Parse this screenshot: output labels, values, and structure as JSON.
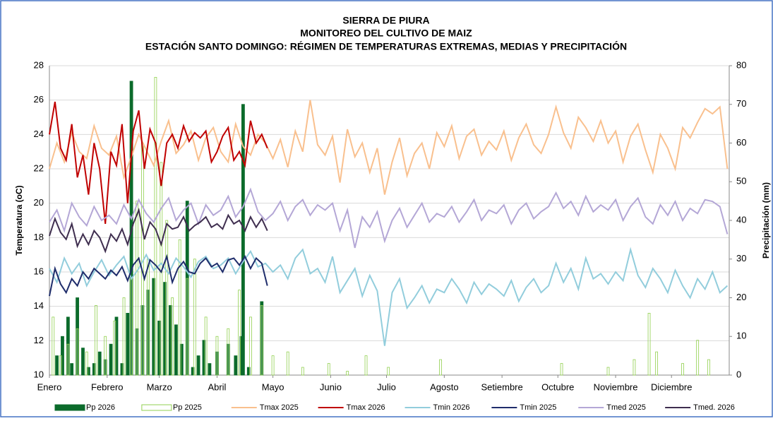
{
  "chart_data": {
    "type": "combo",
    "title": [
      "SIERRA DE PIURA",
      "MONITOREO DEL CULTIVO DE MAIZ",
      "ESTACIÓN SANTO DOMINGO: RÉGIMEN DE TEMPERATURAS EXTREMAS, MEDIAS Y PRECIPITACIÓN"
    ],
    "y_label": "Temperatura (oC)",
    "y2_label": "Precipitación (mm)",
    "xlim": [
      0,
      365
    ],
    "xticks": [
      {
        "value": 0,
        "label": "Enero"
      },
      {
        "value": 31,
        "label": "Febrero"
      },
      {
        "value": 59,
        "label": "Marzo"
      },
      {
        "value": 90,
        "label": "Abril"
      },
      {
        "value": 120,
        "label": "Mayo"
      },
      {
        "value": 151,
        "label": "Junio"
      },
      {
        "value": 181,
        "label": "Julio"
      },
      {
        "value": 212,
        "label": "Agosto"
      },
      {
        "value": 243,
        "label": "Setiembre"
      },
      {
        "value": 273,
        "label": "Octubre"
      },
      {
        "value": 304,
        "label": "Noviembre"
      },
      {
        "value": 334,
        "label": "Diciembre"
      }
    ],
    "ylim": [
      10,
      28
    ],
    "yticks": [
      10,
      12,
      14,
      16,
      18,
      20,
      22,
      24,
      26,
      28
    ],
    "y2lim": [
      0,
      80
    ],
    "y2ticks": [
      0,
      10,
      20,
      30,
      40,
      50,
      60,
      70,
      80
    ],
    "grid": true,
    "legend": "bottom",
    "series": [
      {
        "name": "Pp 2026",
        "type": "bar",
        "axis": "y2",
        "color": "#0b6b2b",
        "filled": true,
        "x": [
          4,
          7,
          10,
          12,
          15,
          18,
          21,
          24,
          27,
          30,
          33,
          36,
          39,
          42,
          44,
          47,
          50,
          53,
          56,
          59,
          62,
          65,
          68,
          71,
          74,
          77,
          80,
          83,
          86,
          90,
          96,
          100,
          103,
          104,
          107,
          114
        ],
        "values": [
          5,
          10,
          15,
          3,
          20,
          7,
          2,
          3,
          6,
          4,
          8,
          15,
          3,
          16,
          76,
          12,
          18,
          22,
          25,
          14,
          24,
          18,
          13,
          8,
          45,
          2,
          5,
          9,
          3,
          6,
          8,
          5,
          10,
          70,
          2,
          19
        ]
      },
      {
        "name": "Pp 2025",
        "type": "bar",
        "axis": "y2",
        "color": "#92d050",
        "filled": false,
        "x": [
          2,
          6,
          10,
          15,
          20,
          25,
          30,
          35,
          40,
          44,
          47,
          50,
          53,
          57,
          60,
          63,
          66,
          70,
          74,
          78,
          84,
          90,
          96,
          102,
          108,
          114,
          120,
          128,
          136,
          150,
          160,
          170,
          182,
          210,
          275,
          300,
          314,
          322,
          326,
          340,
          348,
          354
        ],
        "values": [
          15,
          5,
          8,
          12,
          6,
          18,
          10,
          14,
          20,
          25,
          45,
          60,
          30,
          77,
          55,
          40,
          20,
          35,
          25,
          30,
          15,
          10,
          12,
          22,
          15,
          18,
          5,
          6,
          2,
          3,
          1,
          5,
          2,
          4,
          3,
          2,
          4,
          16,
          6,
          3,
          9,
          4
        ]
      },
      {
        "name": "Tmax 2025",
        "type": "line",
        "color": "#f9c08e",
        "x": [
          0,
          4,
          8,
          12,
          16,
          20,
          24,
          28,
          32,
          36,
          40,
          44,
          48,
          52,
          56,
          60,
          64,
          68,
          72,
          76,
          80,
          84,
          88,
          92,
          96,
          100,
          104,
          108,
          112,
          116,
          120,
          124,
          128,
          132,
          136,
          140,
          144,
          148,
          152,
          156,
          160,
          164,
          168,
          172,
          176,
          180,
          184,
          188,
          192,
          196,
          200,
          204,
          208,
          212,
          216,
          220,
          224,
          228,
          232,
          236,
          240,
          244,
          248,
          252,
          256,
          260,
          264,
          268,
          272,
          276,
          280,
          284,
          288,
          292,
          296,
          300,
          304,
          308,
          312,
          316,
          320,
          324,
          328,
          332,
          336,
          340,
          344,
          348,
          352,
          356,
          360,
          364
        ],
        "values": [
          22.0,
          23.5,
          22.4,
          24.1,
          23.0,
          22.6,
          24.5,
          23.2,
          22.8,
          23.9,
          21.5,
          22.7,
          24.0,
          23.1,
          22.2,
          23.6,
          24.8,
          22.9,
          23.4,
          24.2,
          22.5,
          23.8,
          24.4,
          23.0,
          22.4,
          24.6,
          23.3,
          22.8,
          24.0,
          23.5,
          22.6,
          23.7,
          22.1,
          24.2,
          23.0,
          26.0,
          23.4,
          22.8,
          23.9,
          21.2,
          24.3,
          22.7,
          23.5,
          21.8,
          23.2,
          20.5,
          22.4,
          23.8,
          21.6,
          22.9,
          23.5,
          22.0,
          24.1,
          23.3,
          24.5,
          22.6,
          23.9,
          24.3,
          22.8,
          23.6,
          23.1,
          24.2,
          22.5,
          23.8,
          24.6,
          23.4,
          22.9,
          24.0,
          25.6,
          24.1,
          23.2,
          25.0,
          24.4,
          23.6,
          24.8,
          23.5,
          24.2,
          22.4,
          23.9,
          24.6,
          23.1,
          21.8,
          24.0,
          23.2,
          22.0,
          24.4,
          23.8,
          24.7,
          25.5,
          25.2,
          25.6,
          22.0
        ]
      },
      {
        "name": "Tmax 2026",
        "type": "line",
        "color": "#c00000",
        "x": [
          0,
          3,
          6,
          9,
          12,
          15,
          18,
          21,
          24,
          27,
          30,
          33,
          36,
          39,
          42,
          45,
          48,
          51,
          54,
          57,
          60,
          63,
          66,
          69,
          72,
          75,
          78,
          81,
          84,
          87,
          90,
          93,
          96,
          99,
          102,
          105,
          108,
          111,
          114,
          117
        ],
        "values": [
          24.0,
          25.9,
          23.2,
          22.5,
          24.6,
          21.5,
          22.8,
          20.5,
          23.5,
          22.0,
          18.8,
          23.0,
          22.2,
          24.6,
          20.0,
          24.2,
          25.4,
          22.0,
          24.3,
          23.5,
          21.0,
          23.5,
          24.0,
          23.2,
          24.5,
          23.6,
          24.1,
          23.8,
          24.2,
          22.4,
          23.0,
          23.9,
          24.4,
          22.5,
          23.0,
          22.2,
          24.8,
          23.5,
          24.0,
          23.2
        ]
      },
      {
        "name": "Tmin 2026",
        "type": "line",
        "color": "#92cddc",
        "x": [
          0,
          4,
          8,
          12,
          16,
          20,
          24,
          28,
          32,
          36,
          40,
          44,
          48,
          52,
          56,
          60,
          64,
          68,
          72,
          76,
          80,
          84,
          88,
          92,
          96,
          100,
          104,
          108,
          112,
          116,
          120,
          124,
          128,
          132,
          136,
          140,
          144,
          148,
          152,
          156,
          160,
          164,
          168,
          172,
          176,
          180,
          184,
          188,
          192,
          196,
          200,
          204,
          208,
          212,
          216,
          220,
          224,
          228,
          232,
          236,
          240,
          244,
          248,
          252,
          256,
          260,
          264,
          268,
          272,
          276,
          280,
          284,
          288,
          292,
          296,
          300,
          304,
          308,
          312,
          316,
          320,
          324,
          328,
          332,
          336,
          340,
          344,
          348,
          352,
          356,
          360,
          364
        ],
        "values": [
          16.2,
          15.4,
          16.8,
          15.9,
          16.5,
          15.2,
          16.0,
          16.7,
          15.8,
          16.4,
          16.9,
          15.6,
          16.2,
          17.0,
          16.1,
          16.5,
          15.9,
          16.8,
          16.3,
          15.7,
          16.6,
          16.9,
          16.2,
          16.4,
          16.8,
          15.9,
          16.6,
          17.2,
          16.3,
          16.5,
          16.0,
          16.4,
          15.6,
          16.8,
          17.3,
          15.9,
          16.2,
          15.4,
          16.9,
          14.8,
          15.5,
          16.2,
          14.6,
          15.8,
          14.9,
          11.7,
          14.8,
          15.6,
          13.9,
          14.5,
          15.2,
          14.2,
          15.0,
          14.8,
          15.6,
          15.0,
          14.2,
          15.4,
          14.7,
          15.3,
          15.0,
          14.6,
          15.5,
          14.3,
          15.1,
          15.6,
          14.8,
          15.2,
          16.5,
          15.4,
          16.2,
          15.0,
          16.8,
          15.6,
          15.9,
          15.3,
          16.0,
          15.5,
          17.3,
          15.8,
          15.1,
          16.2,
          15.6,
          14.8,
          16.1,
          15.2,
          14.5,
          15.6,
          15.0,
          16.0,
          14.8,
          15.2
        ]
      },
      {
        "name": "Tmin 2025",
        "type": "line",
        "color": "#1f2d6b",
        "x": [
          0,
          3,
          6,
          9,
          12,
          15,
          18,
          21,
          24,
          27,
          30,
          33,
          36,
          39,
          42,
          45,
          48,
          51,
          54,
          57,
          60,
          63,
          66,
          69,
          72,
          75,
          78,
          81,
          84,
          87,
          90,
          93,
          96,
          99,
          102,
          105,
          108,
          111,
          114,
          117
        ],
        "values": [
          14.6,
          16.2,
          15.3,
          14.8,
          15.6,
          15.2,
          16.0,
          15.6,
          16.2,
          15.9,
          15.6,
          16.1,
          15.8,
          16.3,
          15.5,
          16.4,
          16.8,
          15.6,
          16.7,
          16.4,
          16.0,
          16.9,
          15.4,
          16.2,
          16.6,
          16.0,
          15.9,
          16.5,
          16.8,
          16.3,
          16.5,
          16.0,
          16.7,
          16.8,
          16.4,
          16.9,
          16.2,
          16.8,
          16.5,
          15.2
        ]
      },
      {
        "name": "Tmed 2025",
        "type": "line",
        "color": "#b4a7d6",
        "x": [
          0,
          4,
          8,
          12,
          16,
          20,
          24,
          28,
          32,
          36,
          40,
          44,
          48,
          52,
          56,
          60,
          64,
          68,
          72,
          76,
          80,
          84,
          88,
          92,
          96,
          100,
          104,
          108,
          112,
          116,
          120,
          124,
          128,
          132,
          136,
          140,
          144,
          148,
          152,
          156,
          160,
          164,
          168,
          172,
          176,
          180,
          184,
          188,
          192,
          196,
          200,
          204,
          208,
          212,
          216,
          220,
          224,
          228,
          232,
          236,
          240,
          244,
          248,
          252,
          256,
          260,
          264,
          268,
          272,
          276,
          280,
          284,
          288,
          292,
          296,
          300,
          304,
          308,
          312,
          316,
          320,
          324,
          328,
          332,
          336,
          340,
          344,
          348,
          352,
          356,
          360,
          364
        ],
        "values": [
          18.9,
          19.6,
          18.4,
          20.0,
          19.2,
          18.7,
          19.8,
          19.0,
          19.3,
          18.8,
          19.9,
          19.1,
          20.2,
          19.4,
          18.9,
          19.7,
          20.3,
          19.0,
          19.6,
          20.0,
          18.8,
          19.9,
          19.3,
          19.6,
          20.4,
          19.2,
          19.8,
          20.8,
          19.5,
          19.0,
          19.4,
          20.1,
          19.0,
          19.8,
          20.2,
          19.3,
          19.9,
          19.6,
          20.0,
          18.4,
          19.6,
          17.4,
          19.2,
          18.6,
          19.5,
          17.8,
          19.0,
          19.7,
          18.6,
          19.3,
          20.0,
          18.9,
          19.4,
          19.2,
          19.8,
          18.9,
          19.5,
          20.2,
          19.0,
          19.6,
          19.4,
          19.9,
          18.8,
          19.6,
          20.0,
          19.1,
          19.5,
          19.8,
          20.6,
          19.7,
          20.1,
          19.3,
          20.4,
          19.5,
          19.9,
          19.6,
          20.2,
          19.0,
          19.8,
          20.3,
          19.2,
          18.8,
          19.9,
          19.3,
          20.1,
          19.0,
          19.7,
          19.4,
          20.2,
          20.1,
          19.8,
          18.2
        ]
      },
      {
        "name": "Tmed. 2026",
        "type": "line",
        "color": "#3f2e4f",
        "x": [
          0,
          3,
          6,
          9,
          12,
          15,
          18,
          21,
          24,
          27,
          30,
          33,
          36,
          39,
          42,
          45,
          48,
          51,
          54,
          57,
          60,
          63,
          66,
          69,
          72,
          75,
          78,
          81,
          84,
          87,
          90,
          93,
          96,
          99,
          102,
          105,
          108,
          111,
          114,
          117
        ],
        "values": [
          18.1,
          19.1,
          18.3,
          17.9,
          18.8,
          17.5,
          18.2,
          17.6,
          18.4,
          18.0,
          17.2,
          18.2,
          17.8,
          18.5,
          17.6,
          18.8,
          19.6,
          17.9,
          18.9,
          18.5,
          17.6,
          18.8,
          18.5,
          18.6,
          19.2,
          18.4,
          18.7,
          18.9,
          19.2,
          18.6,
          18.8,
          18.5,
          19.3,
          18.8,
          19.0,
          18.4,
          19.2,
          18.6,
          19.1,
          18.4
        ]
      }
    ]
  }
}
